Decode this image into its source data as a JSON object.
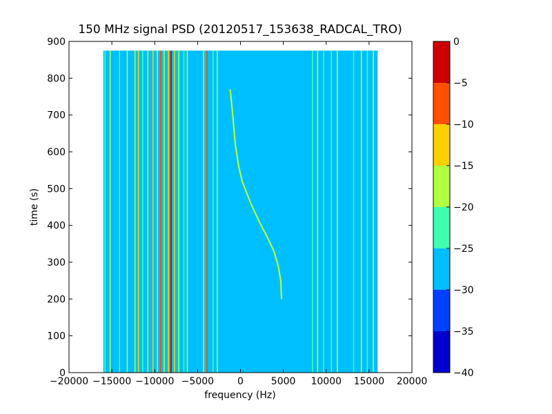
{
  "chart_data": {
    "type": "heatmap",
    "title": "150 MHz signal PSD (20120517_153638_RADCAL_TRO)",
    "xlabel": "frequency (Hz)",
    "ylabel": "time (s)",
    "xlim": [
      -20000,
      20000
    ],
    "ylim": [
      0,
      900
    ],
    "x_ticks": [
      -20000,
      -15000,
      -10000,
      -5000,
      0,
      5000,
      10000,
      15000,
      20000
    ],
    "x_tick_labels": [
      "−20000",
      "−15000",
      "−10000",
      "−5000",
      "0",
      "5000",
      "10000",
      "15000",
      "20000"
    ],
    "y_ticks": [
      0,
      100,
      200,
      300,
      400,
      500,
      600,
      700,
      800,
      900
    ],
    "y_tick_labels": [
      "0",
      "100",
      "200",
      "300",
      "400",
      "500",
      "600",
      "700",
      "800",
      "900"
    ],
    "data_extent": {
      "freq_hz": [
        -16000,
        16000
      ],
      "time_s": [
        0,
        875
      ]
    },
    "background_level_db": -27.5,
    "colorbar": {
      "levels": [
        -40,
        -35,
        -30,
        -25,
        -20,
        -15,
        -10,
        -5,
        0
      ],
      "tick_labels": [
        "−40",
        "−35",
        "−30",
        "−25",
        "−20",
        "−15",
        "−10",
        "−5",
        "0"
      ],
      "colors": [
        "#0000cd",
        "#0040ff",
        "#00bfff",
        "#40ffb0",
        "#b0ff40",
        "#ffd000",
        "#ff5000",
        "#cd0000"
      ]
    },
    "signal_lines": [
      {
        "freq_hz": -15800,
        "level_db": -22.5
      },
      {
        "freq_hz": -15200,
        "level_db": -17.5
      },
      {
        "freq_hz": -14100,
        "level_db": -22.5
      },
      {
        "freq_hz": -13200,
        "level_db": -17.5
      },
      {
        "freq_hz": -12300,
        "level_db": -17.5
      },
      {
        "freq_hz": -11900,
        "level_db": -12.5
      },
      {
        "freq_hz": -11400,
        "level_db": -22.5
      },
      {
        "freq_hz": -10800,
        "level_db": -17.5
      },
      {
        "freq_hz": -10200,
        "level_db": -12.5
      },
      {
        "freq_hz": -9700,
        "level_db": -17.5
      },
      {
        "freq_hz": -9300,
        "level_db": -7.5
      },
      {
        "freq_hz": -8900,
        "level_db": -17.5
      },
      {
        "freq_hz": -8400,
        "level_db": -12.5
      },
      {
        "freq_hz": -8100,
        "level_db": -2.5
      },
      {
        "freq_hz": -7700,
        "level_db": -12.5
      },
      {
        "freq_hz": -7200,
        "level_db": -17.5
      },
      {
        "freq_hz": -6600,
        "level_db": -22.5
      },
      {
        "freq_hz": -6200,
        "level_db": -17.5
      },
      {
        "freq_hz": -4300,
        "level_db": -17.5
      },
      {
        "freq_hz": -3900,
        "level_db": -7.5
      },
      {
        "freq_hz": -3200,
        "level_db": -22.5
      },
      {
        "freq_hz": -2700,
        "level_db": -17.5
      },
      {
        "freq_hz": 8400,
        "level_db": -22.5
      },
      {
        "freq_hz": 9000,
        "level_db": -17.5
      },
      {
        "freq_hz": 9700,
        "level_db": -22.5
      },
      {
        "freq_hz": 10600,
        "level_db": -22.5
      },
      {
        "freq_hz": 11300,
        "level_db": -17.5
      },
      {
        "freq_hz": 13200,
        "level_db": -22.5
      },
      {
        "freq_hz": 14100,
        "level_db": -17.5
      },
      {
        "freq_hz": 14800,
        "level_db": -22.5
      },
      {
        "freq_hz": 15500,
        "level_db": -17.5
      }
    ],
    "drifting_signal": {
      "level_db": -17.5,
      "points": [
        {
          "freq_hz": -1200,
          "time_s": 770
        },
        {
          "freq_hz": -900,
          "time_s": 700
        },
        {
          "freq_hz": -600,
          "time_s": 620
        },
        {
          "freq_hz": -200,
          "time_s": 560
        },
        {
          "freq_hz": 200,
          "time_s": 520
        },
        {
          "freq_hz": 1200,
          "time_s": 460
        },
        {
          "freq_hz": 2200,
          "time_s": 410
        },
        {
          "freq_hz": 3100,
          "time_s": 370
        },
        {
          "freq_hz": 3900,
          "time_s": 330
        },
        {
          "freq_hz": 4400,
          "time_s": 290
        },
        {
          "freq_hz": 4700,
          "time_s": 250
        },
        {
          "freq_hz": 4800,
          "time_s": 200
        }
      ]
    }
  }
}
